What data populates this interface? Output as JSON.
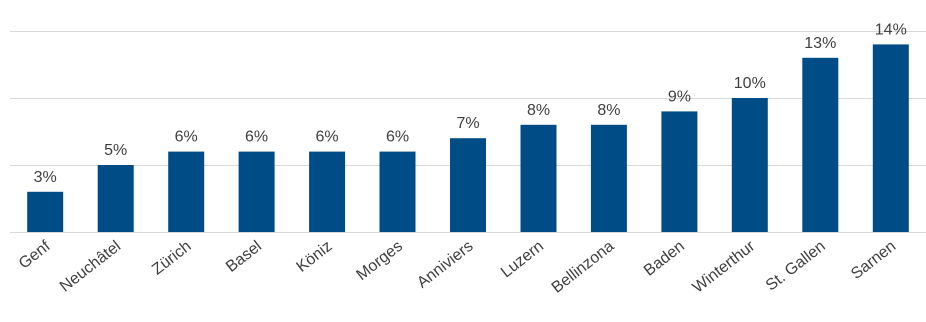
{
  "chart_data": {
    "type": "bar",
    "categories": [
      "Genf",
      "Neuchâtel",
      "Zürich",
      "Basel",
      "Köniz",
      "Morges",
      "Anniviers",
      "Luzern",
      "Bellinzona",
      "Baden",
      "Winterthur",
      "St. Gallen",
      "Sarnen"
    ],
    "values": [
      3,
      5,
      6,
      6,
      6,
      6,
      7,
      8,
      8,
      9,
      10,
      13,
      14
    ],
    "data_labels": [
      "3%",
      "5%",
      "6%",
      "6%",
      "6%",
      "6%",
      "7%",
      "8%",
      "8%",
      "9%",
      "10%",
      "13%",
      "14%"
    ],
    "title": "",
    "xlabel": "",
    "ylabel": "",
    "ylim": [
      0,
      15
    ],
    "grid": true,
    "gridline_values": [
      0,
      5,
      10,
      15
    ],
    "legend": "none",
    "colors": {
      "bar": "#004c87",
      "gridline": "#d9d9d9",
      "label_text": "#404040"
    }
  }
}
